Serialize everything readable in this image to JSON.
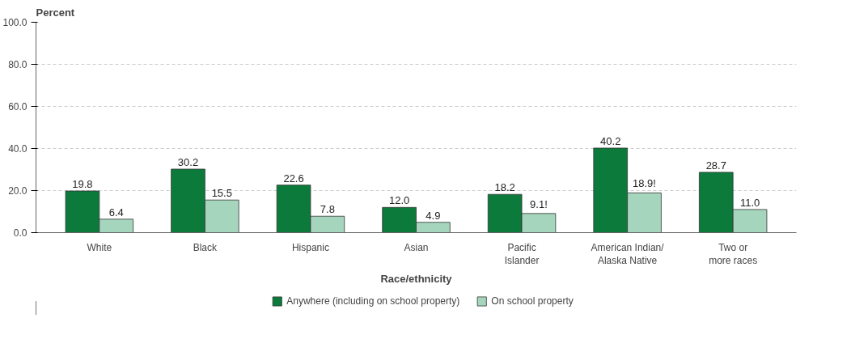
{
  "chart_data": {
    "type": "bar",
    "ylabel": "Percent",
    "xlabel": "Race/ethnicity",
    "categories": [
      "White",
      "Black",
      "Hispanic",
      "Asian",
      "Pacific\nIslander",
      "American Indian/\nAlaska Native",
      "Two or\nmore races"
    ],
    "series": [
      {
        "name": "Anywhere (including on school property)",
        "color": "#0b7a3b",
        "values": [
          19.8,
          30.2,
          22.6,
          12.0,
          18.2,
          40.2,
          28.7
        ],
        "value_labels": [
          "19.8",
          "30.2",
          "22.6",
          "12.0",
          "18.2",
          "40.2",
          "28.7"
        ]
      },
      {
        "name": "On school property",
        "color": "#a5d6bd",
        "values": [
          6.4,
          15.5,
          7.8,
          4.9,
          9.1,
          18.9,
          11.0
        ],
        "value_labels": [
          "6.4",
          "15.5",
          "7.8",
          "4.9",
          "9.1!",
          "18.9!",
          "11.0"
        ]
      }
    ],
    "ylim": [
      0,
      100
    ],
    "yticks": [
      {
        "value": 0,
        "label": "0.0"
      },
      {
        "value": 20,
        "label": "20.0"
      },
      {
        "value": 40,
        "label": "40.0"
      },
      {
        "value": 60,
        "label": "60.0"
      },
      {
        "value": 80,
        "label": "80.0"
      },
      {
        "value": 100,
        "label": "100.0"
      }
    ],
    "grid": "y",
    "legend": "bottom"
  }
}
